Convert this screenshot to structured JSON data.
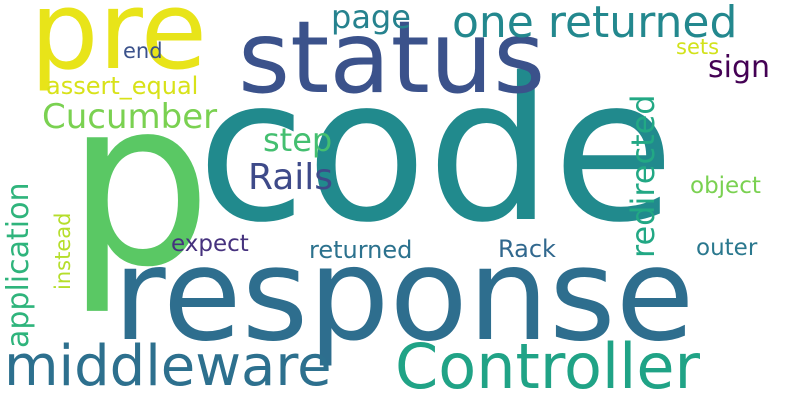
{
  "words": {
    "code": {
      "text": "code",
      "color": "#218a8d"
    },
    "p": {
      "text": "p",
      "color": "#5ac864"
    },
    "response": {
      "text": "response",
      "color": "#2e6e8e"
    },
    "status": {
      "text": "status",
      "color": "#3b528b"
    },
    "pre": {
      "text": "pre",
      "color": "#e8e419"
    },
    "controller": {
      "text": "Controller",
      "color": "#20a386"
    },
    "middleware": {
      "text": "middleware",
      "color": "#2d708e"
    },
    "one_returned": {
      "text": "one returned",
      "color": "#23888e"
    },
    "cucumber": {
      "text": "Cucumber",
      "color": "#7ad151"
    },
    "rails": {
      "text": "Rails",
      "color": "#3e4a89"
    },
    "application": {
      "text": "application",
      "color": "#2fb47c"
    },
    "redirected": {
      "text": "redirected",
      "color": "#22a884"
    },
    "step": {
      "text": "step",
      "color": "#44bf70"
    },
    "page": {
      "text": "page",
      "color": "#26828e"
    },
    "sign": {
      "text": "sign",
      "color": "#440154"
    },
    "assert_equal": {
      "text": "assert_equal",
      "color": "#d8e219"
    },
    "end": {
      "text": "end",
      "color": "#3b528b"
    },
    "sets": {
      "text": "sets",
      "color": "#d2e21b"
    },
    "object": {
      "text": "object",
      "color": "#7ad151"
    },
    "expect": {
      "text": "expect",
      "color": "#46327e"
    },
    "returned": {
      "text": "returned",
      "color": "#2c728e"
    },
    "rack": {
      "text": "Rack",
      "color": "#31688e"
    },
    "outer": {
      "text": "outer",
      "color": "#2a788e"
    },
    "instead": {
      "text": "instead",
      "color": "#b5de2b"
    }
  }
}
